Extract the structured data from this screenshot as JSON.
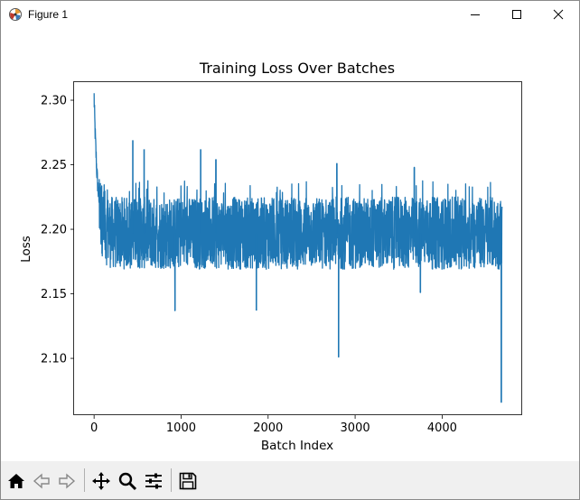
{
  "window": {
    "title": "Figure 1"
  },
  "toolbar": {
    "items": [
      "home-icon",
      "back-arrow-icon",
      "forward-arrow-icon",
      "pan-icon",
      "zoom-icon",
      "configure-subplots-icon",
      "save-icon"
    ]
  },
  "colors": {
    "series": "#1f77b4",
    "toolbar_bg": "#f0f0f0"
  },
  "chart_data": {
    "type": "line",
    "title": "Training Loss Over Batches",
    "xlabel": "Batch Index",
    "ylabel": "Loss",
    "xlim": [
      -230,
      4920
    ],
    "ylim": [
      2.056,
      2.314
    ],
    "xticks": [
      0,
      1000,
      2000,
      3000,
      4000
    ],
    "yticks": [
      2.1,
      2.15,
      2.2,
      2.25,
      2.3
    ],
    "xtick_labels": [
      "0",
      "1000",
      "2000",
      "3000",
      "4000"
    ],
    "ytick_labels": [
      "2.10",
      "2.15",
      "2.20",
      "2.25",
      "2.30"
    ],
    "grid": false,
    "series": [
      {
        "name": "",
        "color": "#1f77b4",
        "n_points": 4690,
        "start": 2.303,
        "plateau": 2.197,
        "band_low": 2.172,
        "band_high": 2.228,
        "downward_spikes": [
          {
            "x": 930,
            "y": 2.137
          },
          {
            "x": 1865,
            "y": 2.137
          },
          {
            "x": 2810,
            "y": 2.101
          },
          {
            "x": 3750,
            "y": 2.151
          },
          {
            "x": 4680,
            "y": 2.066
          }
        ],
        "upward_spikes": [
          {
            "x": 445,
            "y": 2.269
          },
          {
            "x": 575,
            "y": 2.262
          },
          {
            "x": 1225,
            "y": 2.262
          },
          {
            "x": 1400,
            "y": 2.254
          },
          {
            "x": 2790,
            "y": 2.251
          },
          {
            "x": 3680,
            "y": 2.248
          }
        ]
      }
    ]
  }
}
